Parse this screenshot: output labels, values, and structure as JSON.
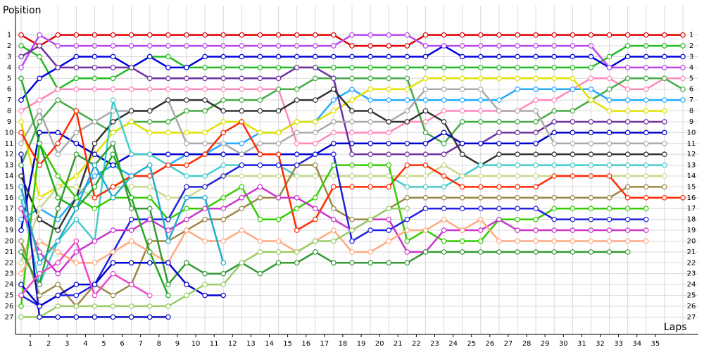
{
  "chart_data": {
    "type": "line",
    "y_label": "Position",
    "x_label": "Laps",
    "grid": true,
    "inverted_y": true,
    "x": [
      0,
      1,
      2,
      3,
      4,
      5,
      6,
      7,
      8,
      9,
      10,
      11,
      12,
      13,
      14,
      15,
      16,
      17,
      18,
      19,
      20,
      21,
      22,
      23,
      24,
      25,
      26,
      27,
      28,
      29,
      30,
      31,
      32,
      33,
      34,
      35,
      36
    ],
    "xlim": [
      0,
      36
    ],
    "ylim": [
      28.6,
      -0.6
    ],
    "xticks": [
      {
        "value": 0.5,
        "label": "1"
      },
      {
        "value": 1.5,
        "label": "2"
      },
      {
        "value": 2.5,
        "label": "3"
      },
      {
        "value": 3.5,
        "label": "4"
      },
      {
        "value": 4.5,
        "label": "5"
      },
      {
        "value": 5.5,
        "label": "6"
      },
      {
        "value": 6.5,
        "label": "7"
      },
      {
        "value": 7.5,
        "label": "8"
      },
      {
        "value": 8.5,
        "label": "9"
      },
      {
        "value": 9.5,
        "label": "10"
      },
      {
        "value": 10.5,
        "label": "11"
      },
      {
        "value": 11.5,
        "label": "12"
      },
      {
        "value": 12.5,
        "label": "13"
      },
      {
        "value": 13.5,
        "label": "14"
      },
      {
        "value": 14.5,
        "label": "15"
      },
      {
        "value": 15.5,
        "label": "16"
      },
      {
        "value": 16.5,
        "label": "17"
      },
      {
        "value": 17.5,
        "label": "18"
      },
      {
        "value": 18.5,
        "label": "19"
      },
      {
        "value": 19.5,
        "label": "20"
      },
      {
        "value": 20.5,
        "label": "21"
      },
      {
        "value": 21.5,
        "label": "22"
      },
      {
        "value": 22.5,
        "label": "23"
      },
      {
        "value": 23.5,
        "label": "24"
      },
      {
        "value": 24.5,
        "label": "25"
      },
      {
        "value": 25.5,
        "label": "26"
      },
      {
        "value": 26.5,
        "label": "27"
      },
      {
        "value": 27.5,
        "label": "28"
      },
      {
        "value": 28.5,
        "label": "29"
      },
      {
        "value": 29.5,
        "label": "30"
      },
      {
        "value": 30.5,
        "label": "31"
      },
      {
        "value": 31.5,
        "label": "32"
      },
      {
        "value": 32.5,
        "label": "33"
      },
      {
        "value": 33.5,
        "label": "34"
      },
      {
        "value": 34.5,
        "label": "35"
      }
    ],
    "yticks": [
      1,
      2,
      3,
      4,
      5,
      6,
      7,
      8,
      9,
      10,
      11,
      12,
      13,
      14,
      15,
      16,
      17,
      18,
      19,
      20,
      21,
      22,
      23,
      24,
      25,
      26,
      27
    ],
    "series": [
      {
        "color": "#e00000",
        "values": [
          1,
          2,
          1,
          1,
          1,
          1,
          1,
          1,
          1,
          1,
          1,
          1,
          1,
          1,
          1,
          1,
          1,
          1,
          2,
          2,
          2,
          2,
          1,
          1,
          1,
          1,
          1,
          1,
          1,
          1,
          1,
          1,
          1,
          1,
          1,
          1,
          1
        ]
      },
      {
        "color": "#22bb22",
        "values": [
          2,
          3,
          6,
          5,
          5,
          5,
          4,
          3,
          3,
          4,
          4,
          4,
          4,
          4,
          4,
          4,
          4,
          4,
          4,
          4,
          4,
          4,
          4,
          4,
          4,
          4,
          4,
          4,
          4,
          4,
          4,
          4,
          3,
          2,
          2,
          2,
          2
        ]
      },
      {
        "color": "#0000dd",
        "values": [
          7,
          5,
          4,
          3,
          3,
          3,
          4,
          3,
          4,
          4,
          3,
          3,
          3,
          3,
          3,
          3,
          3,
          3,
          3,
          3,
          3,
          3,
          3,
          2,
          3,
          3,
          3,
          3,
          3,
          3,
          3,
          3,
          4,
          3,
          3,
          3,
          3
        ]
      },
      {
        "color": "#bb44ee",
        "values": [
          4,
          1,
          2,
          2,
          2,
          2,
          2,
          2,
          2,
          2,
          2,
          2,
          2,
          2,
          2,
          2,
          2,
          2,
          1,
          1,
          1,
          1,
          2,
          2,
          2,
          2,
          2,
          2,
          2,
          2,
          2,
          2,
          4,
          4,
          4,
          4,
          4
        ]
      },
      {
        "color": "#ff88bb",
        "values": [
          8,
          7,
          6,
          6,
          6,
          6,
          6,
          6,
          6,
          6,
          6,
          6,
          6,
          6,
          6,
          11,
          11,
          10,
          10,
          10,
          10,
          9,
          9,
          8,
          8,
          8,
          8,
          8,
          7,
          7,
          6,
          5,
          5,
          6,
          6,
          5,
          5
        ]
      },
      {
        "color": "#44aa44",
        "values": [
          13,
          9,
          7,
          8,
          9,
          10,
          9,
          9,
          9,
          8,
          8,
          7,
          7,
          7,
          6,
          6,
          5,
          5,
          5,
          5,
          5,
          5,
          10,
          11,
          9,
          9,
          9,
          9,
          9,
          8,
          8,
          7,
          6,
          5,
          5,
          5,
          6
        ]
      },
      {
        "color": "#22aaff",
        "values": [
          18,
          17,
          18,
          16,
          14,
          13,
          14,
          14,
          13,
          12,
          12,
          11,
          11,
          10,
          10,
          9,
          9,
          7,
          6,
          7,
          7,
          7,
          7,
          7,
          7,
          7,
          7,
          6,
          6,
          6,
          6,
          6,
          7,
          7,
          7,
          7,
          7
        ]
      },
      {
        "color": "#e0e000",
        "values": [
          9,
          16,
          15,
          14,
          12,
          10,
          9,
          10,
          10,
          10,
          10,
          9,
          9,
          10,
          10,
          9,
          9,
          8,
          7,
          6,
          6,
          6,
          5,
          5,
          5,
          5,
          5,
          5,
          5,
          5,
          5,
          7,
          8,
          8,
          8,
          8,
          null
        ]
      },
      {
        "color": "#7030a0",
        "values": [
          3,
          2,
          4,
          4,
          4,
          4,
          4,
          5,
          5,
          5,
          5,
          5,
          5,
          5,
          5,
          4,
          4,
          5,
          12,
          12,
          12,
          12,
          12,
          12,
          11,
          11,
          10,
          10,
          10,
          9,
          9,
          9,
          9,
          9,
          9,
          9,
          null
        ]
      },
      {
        "color": "#0000cc",
        "values": [
          19,
          10,
          10,
          11,
          12,
          13,
          12,
          12,
          12,
          12,
          12,
          12,
          12,
          12,
          12,
          12,
          12,
          11,
          11,
          11,
          11,
          11,
          11,
          10,
          11,
          11,
          11,
          11,
          11,
          10,
          10,
          10,
          10,
          10,
          10,
          10,
          null
        ]
      },
      {
        "color": "#aaaaaa",
        "values": [
          11,
          8,
          12,
          10,
          9,
          8,
          8,
          8,
          7,
          11,
          11,
          11,
          12,
          11,
          11,
          10,
          10,
          9,
          9,
          9,
          9,
          8,
          6,
          6,
          6,
          6,
          8,
          8,
          8,
          11,
          11,
          11,
          11,
          11,
          11,
          11,
          null
        ]
      },
      {
        "color": "#333333",
        "values": [
          14,
          18,
          19,
          16,
          11,
          9,
          8,
          8,
          7,
          7,
          7,
          8,
          8,
          8,
          8,
          7,
          7,
          6,
          8,
          8,
          9,
          9,
          8,
          9,
          12,
          13,
          12,
          12,
          12,
          12,
          12,
          12,
          12,
          12,
          12,
          12,
          null
        ]
      },
      {
        "color": "#44cccc",
        "values": [
          16,
          24,
          20,
          18,
          20,
          7,
          12,
          12,
          13,
          14,
          14,
          13,
          13,
          13,
          13,
          14,
          14,
          14,
          14,
          14,
          14,
          15,
          15,
          15,
          14,
          13,
          13,
          13,
          13,
          13,
          13,
          13,
          13,
          13,
          13,
          13,
          null
        ]
      },
      {
        "color": "#c8d888",
        "values": [
          22,
          17,
          15,
          15,
          16,
          15,
          15,
          15,
          16,
          16,
          15,
          14,
          14,
          14,
          14,
          14,
          14,
          14,
          14,
          14,
          14,
          14,
          14,
          13,
          14,
          14,
          14,
          14,
          14,
          14,
          14,
          14,
          14,
          14,
          14,
          14,
          null
        ]
      },
      {
        "color": "#998844",
        "values": [
          20,
          25,
          24,
          26,
          24,
          25,
          24,
          20,
          20,
          19,
          18,
          18,
          17,
          16,
          16,
          13,
          13,
          17,
          18,
          18,
          17,
          16,
          16,
          16,
          16,
          16,
          16,
          16,
          16,
          16,
          16,
          16,
          16,
          15,
          15,
          15,
          null
        ]
      },
      {
        "color": "#ff2a00",
        "values": [
          10,
          13,
          11,
          8,
          16,
          15,
          14,
          14,
          13,
          13,
          12,
          10,
          9,
          12,
          12,
          19,
          18,
          15,
          15,
          15,
          15,
          13,
          13,
          14,
          15,
          15,
          15,
          15,
          15,
          14,
          14,
          14,
          14,
          16,
          16,
          16,
          16
        ]
      },
      {
        "color": "#33cc00",
        "values": [
          26,
          11,
          14,
          16,
          17,
          16,
          16,
          16,
          18,
          17,
          17,
          16,
          15,
          18,
          18,
          17,
          16,
          13,
          13,
          13,
          13,
          20,
          19,
          20,
          20,
          20,
          18,
          18,
          18,
          17,
          17,
          17,
          17,
          17,
          17,
          null,
          null
        ]
      },
      {
        "color": "#2020dd",
        "values": [
          25,
          26,
          25,
          25,
          24,
          21,
          18,
          18,
          18,
          15,
          15,
          14,
          13,
          13,
          13,
          13,
          12,
          12,
          20,
          19,
          19,
          18,
          17,
          17,
          17,
          17,
          17,
          17,
          17,
          18,
          18,
          18,
          18,
          18,
          18,
          null,
          null
        ]
      },
      {
        "color": "#cc33cc",
        "values": [
          17,
          21,
          23,
          21,
          20,
          19,
          19,
          18,
          19,
          18,
          17,
          17,
          16,
          15,
          16,
          16,
          17,
          18,
          19,
          18,
          18,
          21,
          21,
          19,
          19,
          19,
          18,
          19,
          19,
          19,
          19,
          19,
          19,
          19,
          19,
          null,
          null
        ]
      },
      {
        "color": "#ffaa80",
        "values": [
          23,
          20,
          21,
          22,
          22,
          21,
          20,
          21,
          22,
          19,
          20,
          20,
          19,
          20,
          20,
          21,
          20,
          19,
          21,
          21,
          20,
          19,
          19,
          18,
          19,
          18,
          20,
          20,
          20,
          20,
          20,
          20,
          20,
          20,
          20,
          null,
          null
        ]
      },
      {
        "color": "#339933",
        "values": [
          21,
          24,
          17,
          12,
          13,
          11,
          17,
          17,
          24,
          22,
          23,
          23,
          22,
          23,
          22,
          22,
          21,
          22,
          22,
          22,
          22,
          22,
          21,
          21,
          21,
          21,
          21,
          21,
          21,
          21,
          21,
          21,
          21,
          21,
          null,
          null,
          null
        ]
      },
      {
        "color": "#0000cc",
        "values": [
          24,
          26,
          25,
          24,
          24,
          22,
          22,
          22,
          22,
          24,
          25,
          25,
          null,
          null,
          null,
          null,
          null,
          null,
          null,
          null,
          null,
          null,
          null,
          null,
          null,
          null,
          null,
          null,
          null,
          null,
          null,
          null,
          null,
          null,
          null,
          null,
          null
        ]
      },
      {
        "color": "#99cc66",
        "values": [
          27,
          27,
          26,
          26,
          26,
          26,
          26,
          26,
          26,
          25,
          24,
          24,
          22,
          21,
          21,
          21,
          20,
          20,
          19,
          18,
          17,
          17,
          null,
          null,
          null,
          null,
          null,
          null,
          null,
          null,
          null,
          null,
          null,
          null,
          null,
          null,
          null
        ]
      },
      {
        "color": "#1010c0",
        "values": [
          12,
          27,
          27,
          27,
          27,
          27,
          27,
          27,
          27,
          null,
          null,
          null,
          null,
          null,
          null,
          null,
          null,
          null,
          null,
          null,
          null,
          null,
          null,
          null,
          null,
          null,
          null,
          null,
          null,
          null,
          null,
          null,
          null,
          null,
          null,
          null,
          null
        ]
      },
      {
        "color": "#22aa22",
        "values": [
          5,
          11,
          16,
          17,
          15,
          12,
          16,
          21,
          25,
          null,
          null,
          null,
          null,
          null,
          null,
          null,
          null,
          null,
          null,
          null,
          null,
          null,
          null,
          null,
          null,
          null,
          null,
          null,
          null,
          null,
          null,
          null,
          null,
          null,
          null,
          null,
          null
        ]
      },
      {
        "color": "#ee44cc",
        "values": [
          25,
          23,
          22,
          20,
          25,
          23,
          24,
          25,
          null,
          null,
          null,
          null,
          null,
          null,
          null,
          null,
          null,
          null,
          null,
          null,
          null,
          null,
          null,
          null,
          null,
          null,
          null,
          null,
          null,
          null,
          null,
          null,
          null,
          null,
          null,
          null,
          null
        ]
      },
      {
        "color": "#22aacc",
        "values": [
          15,
          22,
          20,
          17,
          13,
          16,
          14,
          13,
          20,
          16,
          16,
          22,
          null,
          null,
          null,
          null,
          null,
          null,
          null,
          null,
          null,
          null,
          null,
          null,
          null,
          null,
          null,
          null,
          null,
          null,
          null,
          null,
          null,
          null,
          null,
          null,
          null
        ]
      }
    ]
  }
}
